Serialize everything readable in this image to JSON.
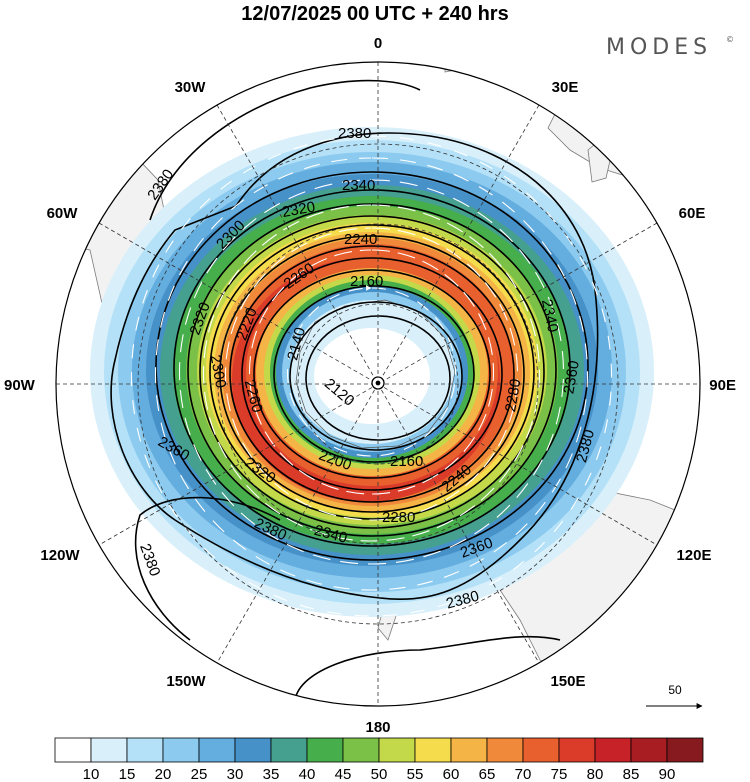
{
  "title": "12/07/2025  00 UTC  + 240 hrs",
  "brand": "MODES",
  "brand_mark": "©",
  "longitude_labels": [
    {
      "text": "0",
      "lon": 0
    },
    {
      "text": "30E",
      "lon": 30
    },
    {
      "text": "60E",
      "lon": 60
    },
    {
      "text": "90E",
      "lon": 90
    },
    {
      "text": "120E",
      "lon": 120
    },
    {
      "text": "150E",
      "lon": 150
    },
    {
      "text": "180",
      "lon": 180
    },
    {
      "text": "150W",
      "lon": -150
    },
    {
      "text": "120W",
      "lon": -120
    },
    {
      "text": "90W",
      "lon": -90
    },
    {
      "text": "60W",
      "lon": -60
    },
    {
      "text": "30W",
      "lon": -30
    }
  ],
  "contour_labels": [
    "2380",
    "2380",
    "2380",
    "2380",
    "2380",
    "2380",
    "2360",
    "2360",
    "2360",
    "2340",
    "2340",
    "2340",
    "2320",
    "2320",
    "2320",
    "2300",
    "2300",
    "2280",
    "2280",
    "2260",
    "2260",
    "2240",
    "2240",
    "2220",
    "2200",
    "2160",
    "2160",
    "2140",
    "2120"
  ],
  "colorbar": {
    "ticks": [
      "10",
      "15",
      "20",
      "25",
      "30",
      "35",
      "40",
      "45",
      "50",
      "55",
      "60",
      "65",
      "70",
      "75",
      "80",
      "85",
      "90"
    ],
    "colors": [
      "#ffffff",
      "#d9f0fb",
      "#b4e1f7",
      "#8ccbef",
      "#64addf",
      "#4791c9",
      "#45a08f",
      "#46ae4b",
      "#7cc147",
      "#c3d94a",
      "#f5dc4c",
      "#f5b446",
      "#f08a3a",
      "#e9602f",
      "#db3c2a",
      "#c62228",
      "#a81d22",
      "#861a1f"
    ]
  },
  "reference_vector": {
    "label": "50"
  },
  "colors": {
    "land": "#f2f2f2",
    "coast": "#7a7a7a",
    "grid": "#333333",
    "contour": "#000000",
    "vector": "#ffffff"
  }
}
